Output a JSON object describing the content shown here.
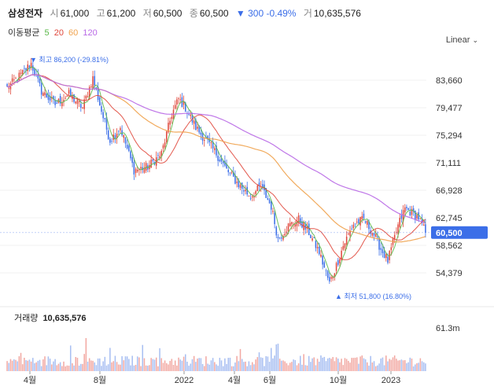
{
  "header": {
    "name": "삼성전자",
    "open_label": "시",
    "open": "61,000",
    "high_label": "고",
    "high": "61,200",
    "low_label": "저",
    "low": "60,500",
    "close_label": "종",
    "close": "60,500",
    "change": "▼ 300 -0.49%",
    "volume_label": "거",
    "volume": "10,635,576"
  },
  "ma_legend": {
    "label": "이동평균",
    "periods": [
      "5",
      "20",
      "60",
      "120"
    ],
    "colors": [
      "#5bb84a",
      "#e0473b",
      "#f0a24c",
      "#b868e6"
    ]
  },
  "scale_toggle": {
    "label": "Linear",
    "icon": "chevron-down-icon"
  },
  "chart_data": {
    "type": "candlestick",
    "y_ticks": [
      83660,
      79477,
      75294,
      71111,
      66928,
      62745,
      58562,
      54379
    ],
    "y_tick_labels": [
      "83,660",
      "79,477",
      "75,294",
      "71,111",
      "66,928",
      "62,745",
      "58,562",
      "54,379"
    ],
    "current_price": 60500,
    "current_price_label": "60,500",
    "high_marker": {
      "price": 86200,
      "text": "▼ 최고  86,200 (-29.81%)"
    },
    "low_marker": {
      "price": 51800,
      "text": "▲ 최저  51,800 (16.80%)"
    },
    "x_labels": [
      "4월",
      "8월",
      "2022",
      "4월",
      "6월",
      "10월",
      "2023"
    ],
    "price_keypoints": [
      [
        0,
        82500
      ],
      [
        8,
        84500
      ],
      [
        14,
        86200
      ],
      [
        20,
        82000
      ],
      [
        28,
        80000
      ],
      [
        36,
        81500
      ],
      [
        44,
        79500
      ],
      [
        50,
        84000
      ],
      [
        56,
        78000
      ],
      [
        60,
        74500
      ],
      [
        66,
        76500
      ],
      [
        74,
        70000
      ],
      [
        82,
        70500
      ],
      [
        90,
        72500
      ],
      [
        96,
        78500
      ],
      [
        100,
        80800
      ],
      [
        104,
        79500
      ],
      [
        110,
        76500
      ],
      [
        116,
        74500
      ],
      [
        122,
        72500
      ],
      [
        128,
        70000
      ],
      [
        136,
        67500
      ],
      [
        142,
        66000
      ],
      [
        148,
        67500
      ],
      [
        154,
        64500
      ],
      [
        158,
        59500
      ],
      [
        164,
        61500
      ],
      [
        170,
        62500
      ],
      [
        176,
        60500
      ],
      [
        182,
        57500
      ],
      [
        188,
        52800
      ],
      [
        192,
        55500
      ],
      [
        196,
        58500
      ],
      [
        202,
        61800
      ],
      [
        208,
        62500
      ],
      [
        214,
        60200
      ],
      [
        218,
        58000
      ],
      [
        222,
        56200
      ],
      [
        228,
        61500
      ],
      [
        232,
        64200
      ],
      [
        236,
        63500
      ],
      [
        240,
        62800
      ],
      [
        244,
        60500
      ]
    ],
    "candle_count": 245,
    "volume": {
      "label": "거래량",
      "value_label": "10,635,576",
      "y_tick_label": "61.3m",
      "y_tick": 61300000
    },
    "moving_averages": [
      {
        "period": 5,
        "color": "#5bb84a"
      },
      {
        "period": 20,
        "color": "#e0473b"
      },
      {
        "period": 60,
        "color": "#f0a24c"
      },
      {
        "period": 120,
        "color": "#b868e6"
      }
    ],
    "up_color": "#e0473b",
    "down_color": "#3b6ee8",
    "grid": true
  }
}
